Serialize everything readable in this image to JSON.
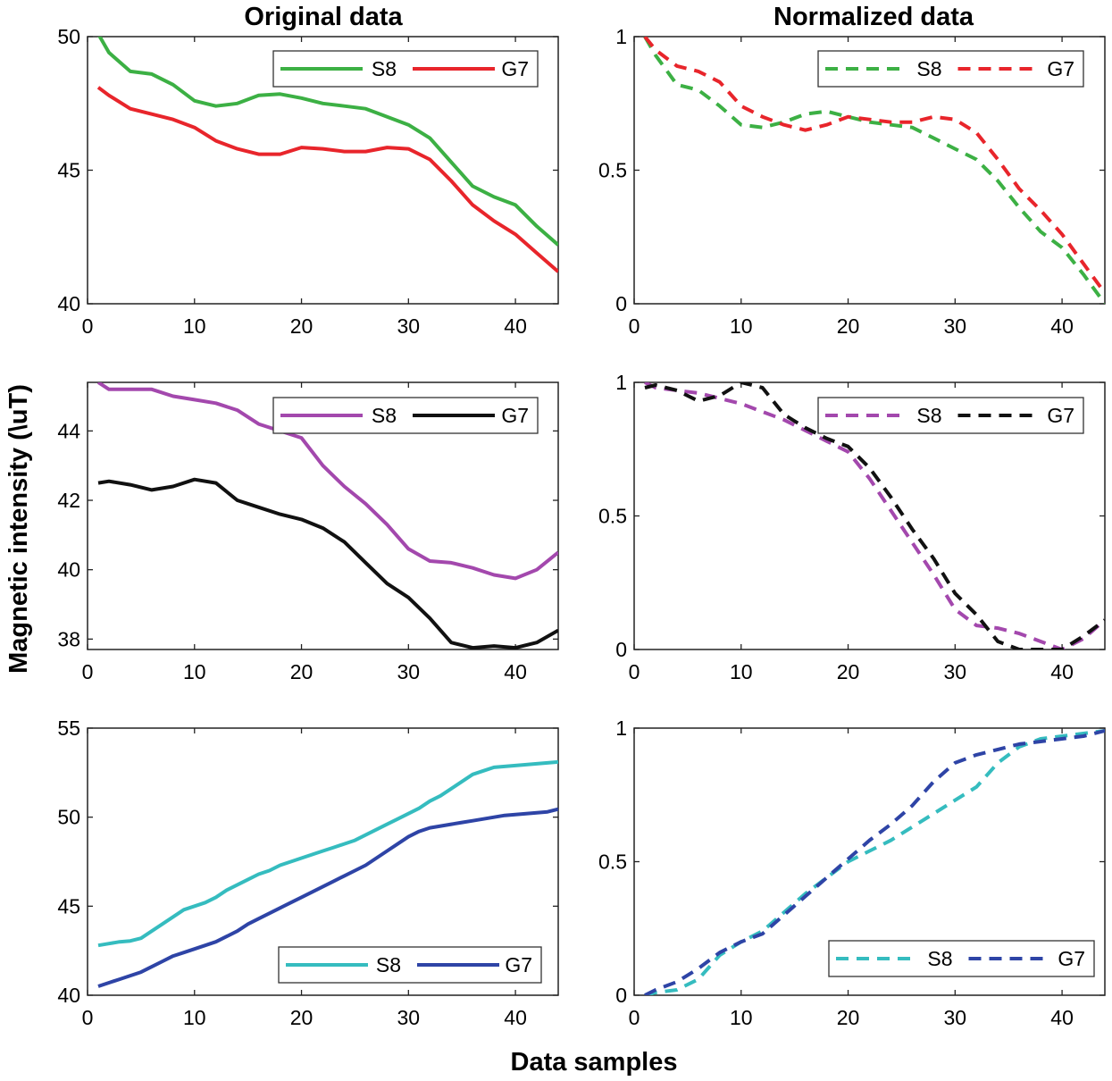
{
  "figure": {
    "col_titles": [
      "Original data",
      "Normalized data"
    ],
    "xlabel": "Data samples",
    "ylabel": "Magnetic intensity (\\uT)"
  },
  "chart_data": [
    {
      "type": "line",
      "panel": "top-left",
      "title": "Original data",
      "xlim": [
        0,
        44
      ],
      "ylim": [
        40,
        50
      ],
      "xticks": [
        0,
        10,
        20,
        30,
        40
      ],
      "yticks": [
        40,
        45,
        50
      ],
      "line_style": "solid",
      "legend_position": "top-right",
      "series": [
        {
          "name": "S8",
          "color": "#3cb044",
          "x": [
            1,
            2,
            4,
            6,
            8,
            10,
            12,
            14,
            16,
            18,
            20,
            22,
            24,
            26,
            28,
            30,
            32,
            34,
            36,
            38,
            40,
            42,
            44
          ],
          "values": [
            50.1,
            49.4,
            48.7,
            48.6,
            48.2,
            47.6,
            47.4,
            47.5,
            47.8,
            47.85,
            47.7,
            47.5,
            47.4,
            47.3,
            47.0,
            46.7,
            46.2,
            45.3,
            44.4,
            44.0,
            43.7,
            42.9,
            42.2
          ]
        },
        {
          "name": "G7",
          "color": "#e8252b",
          "x": [
            1,
            2,
            4,
            6,
            8,
            10,
            12,
            14,
            16,
            18,
            20,
            22,
            24,
            26,
            28,
            30,
            32,
            34,
            36,
            38,
            40,
            42,
            44
          ],
          "values": [
            48.1,
            47.8,
            47.3,
            47.1,
            46.9,
            46.6,
            46.1,
            45.8,
            45.6,
            45.6,
            45.85,
            45.8,
            45.7,
            45.7,
            45.85,
            45.8,
            45.4,
            44.6,
            43.7,
            43.1,
            42.6,
            41.9,
            41.2
          ]
        }
      ]
    },
    {
      "type": "line",
      "panel": "top-right",
      "title": "Normalized data",
      "xlim": [
        0,
        44
      ],
      "ylim": [
        0,
        1
      ],
      "xticks": [
        0,
        10,
        20,
        30,
        40
      ],
      "yticks": [
        0,
        0.5,
        1
      ],
      "line_style": "dashed",
      "legend_position": "top-right",
      "series": [
        {
          "name": "S8",
          "color": "#3cb044",
          "x": [
            1,
            2,
            4,
            6,
            8,
            10,
            12,
            14,
            16,
            18,
            20,
            22,
            24,
            26,
            28,
            30,
            32,
            34,
            36,
            38,
            40,
            42,
            44
          ],
          "values": [
            1.0,
            0.93,
            0.82,
            0.8,
            0.74,
            0.67,
            0.66,
            0.68,
            0.71,
            0.72,
            0.7,
            0.68,
            0.67,
            0.66,
            0.62,
            0.58,
            0.54,
            0.46,
            0.36,
            0.27,
            0.21,
            0.11,
            0.0
          ]
        },
        {
          "name": "G7",
          "color": "#e8252b",
          "x": [
            1,
            2,
            4,
            6,
            8,
            10,
            12,
            14,
            16,
            18,
            20,
            22,
            24,
            26,
            28,
            30,
            32,
            34,
            36,
            38,
            40,
            42,
            44
          ],
          "values": [
            1.0,
            0.95,
            0.89,
            0.87,
            0.83,
            0.74,
            0.7,
            0.67,
            0.65,
            0.67,
            0.7,
            0.69,
            0.68,
            0.68,
            0.7,
            0.69,
            0.64,
            0.54,
            0.43,
            0.35,
            0.26,
            0.15,
            0.04
          ]
        }
      ]
    },
    {
      "type": "line",
      "panel": "middle-left",
      "xlim": [
        0,
        44
      ],
      "ylim": [
        37.7,
        45.4
      ],
      "xticks": [
        0,
        10,
        20,
        30,
        40
      ],
      "yticks": [
        38,
        40,
        42,
        44
      ],
      "line_style": "solid",
      "legend_position": "top-right",
      "series": [
        {
          "name": "S8",
          "color": "#a348ad",
          "x": [
            1,
            2,
            4,
            6,
            8,
            10,
            12,
            14,
            16,
            18,
            20,
            22,
            24,
            26,
            28,
            30,
            32,
            34,
            36,
            38,
            40,
            42,
            44
          ],
          "values": [
            45.4,
            45.2,
            45.2,
            45.2,
            45.0,
            44.9,
            44.8,
            44.6,
            44.2,
            44.0,
            43.8,
            43.0,
            42.4,
            41.9,
            41.3,
            40.6,
            40.25,
            40.2,
            40.05,
            39.85,
            39.75,
            40.0,
            40.5
          ]
        },
        {
          "name": "G7",
          "color": "#111111",
          "x": [
            1,
            2,
            4,
            6,
            8,
            10,
            12,
            14,
            16,
            18,
            20,
            22,
            24,
            26,
            28,
            30,
            32,
            34,
            36,
            38,
            40,
            42,
            44
          ],
          "values": [
            42.5,
            42.55,
            42.45,
            42.3,
            42.4,
            42.6,
            42.5,
            42.0,
            41.8,
            41.6,
            41.45,
            41.2,
            40.8,
            40.2,
            39.6,
            39.2,
            38.6,
            37.9,
            37.75,
            37.8,
            37.75,
            37.9,
            38.25
          ]
        }
      ]
    },
    {
      "type": "line",
      "panel": "middle-right",
      "xlim": [
        0,
        44
      ],
      "ylim": [
        0,
        1
      ],
      "xticks": [
        0,
        10,
        20,
        30,
        40
      ],
      "yticks": [
        0,
        0.5,
        1
      ],
      "line_style": "dashed",
      "legend_position": "top-right",
      "series": [
        {
          "name": "S8",
          "color": "#a348ad",
          "x": [
            1,
            2,
            4,
            6,
            8,
            10,
            12,
            14,
            16,
            18,
            20,
            22,
            24,
            26,
            28,
            30,
            32,
            34,
            36,
            38,
            40,
            42,
            44
          ],
          "values": [
            1.0,
            0.98,
            0.97,
            0.96,
            0.94,
            0.92,
            0.89,
            0.86,
            0.82,
            0.78,
            0.74,
            0.64,
            0.52,
            0.4,
            0.28,
            0.15,
            0.09,
            0.08,
            0.06,
            0.03,
            0.0,
            0.04,
            0.11
          ]
        },
        {
          "name": "G7",
          "color": "#111111",
          "x": [
            1,
            2,
            4,
            6,
            8,
            10,
            12,
            14,
            16,
            18,
            20,
            22,
            24,
            26,
            28,
            30,
            32,
            34,
            36,
            38,
            40,
            42,
            44
          ],
          "values": [
            0.98,
            0.99,
            0.97,
            0.93,
            0.95,
            1.0,
            0.98,
            0.88,
            0.83,
            0.79,
            0.76,
            0.68,
            0.57,
            0.45,
            0.34,
            0.21,
            0.13,
            0.03,
            0.0,
            0.0,
            0.0,
            0.05,
            0.11
          ]
        }
      ]
    },
    {
      "type": "line",
      "panel": "bottom-left",
      "xlim": [
        0,
        44
      ],
      "ylim": [
        40,
        55
      ],
      "xticks": [
        0,
        10,
        20,
        30,
        40
      ],
      "yticks": [
        40,
        45,
        50,
        55
      ],
      "line_style": "solid",
      "legend_position": "bottom-right",
      "series": [
        {
          "name": "S8",
          "color": "#35bcbf",
          "x": [
            1,
            2,
            3,
            4,
            5,
            6,
            7,
            8,
            9,
            10,
            11,
            12,
            13,
            14,
            15,
            16,
            17,
            18,
            19,
            20,
            21,
            22,
            23,
            24,
            25,
            26,
            27,
            28,
            29,
            30,
            31,
            32,
            33,
            34,
            35,
            36,
            37,
            38,
            39,
            40,
            41,
            42,
            43,
            44
          ],
          "values": [
            42.8,
            42.9,
            43.0,
            43.05,
            43.2,
            43.6,
            44.0,
            44.4,
            44.8,
            45.0,
            45.2,
            45.5,
            45.9,
            46.2,
            46.5,
            46.8,
            47.0,
            47.3,
            47.5,
            47.7,
            47.9,
            48.1,
            48.3,
            48.5,
            48.7,
            49.0,
            49.3,
            49.6,
            49.9,
            50.2,
            50.5,
            50.9,
            51.2,
            51.6,
            52.0,
            52.4,
            52.6,
            52.8,
            52.85,
            52.9,
            52.95,
            53.0,
            53.05,
            53.1
          ]
        },
        {
          "name": "G7",
          "color": "#2e44a6",
          "x": [
            1,
            2,
            3,
            4,
            5,
            6,
            7,
            8,
            9,
            10,
            11,
            12,
            13,
            14,
            15,
            16,
            17,
            18,
            19,
            20,
            21,
            22,
            23,
            24,
            25,
            26,
            27,
            28,
            29,
            30,
            31,
            32,
            33,
            34,
            35,
            36,
            37,
            38,
            39,
            40,
            41,
            42,
            43,
            44
          ],
          "values": [
            40.5,
            40.7,
            40.9,
            41.1,
            41.3,
            41.6,
            41.9,
            42.2,
            42.4,
            42.6,
            42.8,
            43.0,
            43.3,
            43.6,
            44.0,
            44.3,
            44.6,
            44.9,
            45.2,
            45.5,
            45.8,
            46.1,
            46.4,
            46.7,
            47.0,
            47.3,
            47.7,
            48.1,
            48.5,
            48.9,
            49.2,
            49.4,
            49.5,
            49.6,
            49.7,
            49.8,
            49.9,
            50.0,
            50.1,
            50.15,
            50.2,
            50.25,
            50.3,
            50.45
          ]
        }
      ]
    },
    {
      "type": "line",
      "panel": "bottom-right",
      "xlim": [
        0,
        44
      ],
      "ylim": [
        0,
        1
      ],
      "xticks": [
        0,
        10,
        20,
        30,
        40
      ],
      "yticks": [
        0,
        0.5,
        1
      ],
      "line_style": "dashed",
      "legend_position": "bottom-right",
      "series": [
        {
          "name": "S8",
          "color": "#35bcbf",
          "x": [
            1,
            2,
            4,
            6,
            8,
            10,
            12,
            14,
            16,
            18,
            20,
            22,
            24,
            26,
            28,
            30,
            32,
            34,
            36,
            38,
            40,
            42,
            44
          ],
          "values": [
            0.0,
            0.01,
            0.02,
            0.06,
            0.15,
            0.2,
            0.24,
            0.31,
            0.38,
            0.44,
            0.5,
            0.54,
            0.58,
            0.63,
            0.68,
            0.73,
            0.78,
            0.87,
            0.93,
            0.96,
            0.97,
            0.98,
            0.99
          ]
        },
        {
          "name": "G7",
          "color": "#2e44a6",
          "x": [
            1,
            2,
            4,
            6,
            8,
            10,
            12,
            14,
            16,
            18,
            20,
            22,
            24,
            26,
            28,
            30,
            32,
            34,
            36,
            38,
            40,
            42,
            44
          ],
          "values": [
            0.0,
            0.02,
            0.05,
            0.1,
            0.16,
            0.2,
            0.23,
            0.3,
            0.37,
            0.44,
            0.51,
            0.58,
            0.64,
            0.71,
            0.8,
            0.87,
            0.9,
            0.92,
            0.94,
            0.95,
            0.96,
            0.97,
            0.99
          ]
        }
      ]
    }
  ]
}
